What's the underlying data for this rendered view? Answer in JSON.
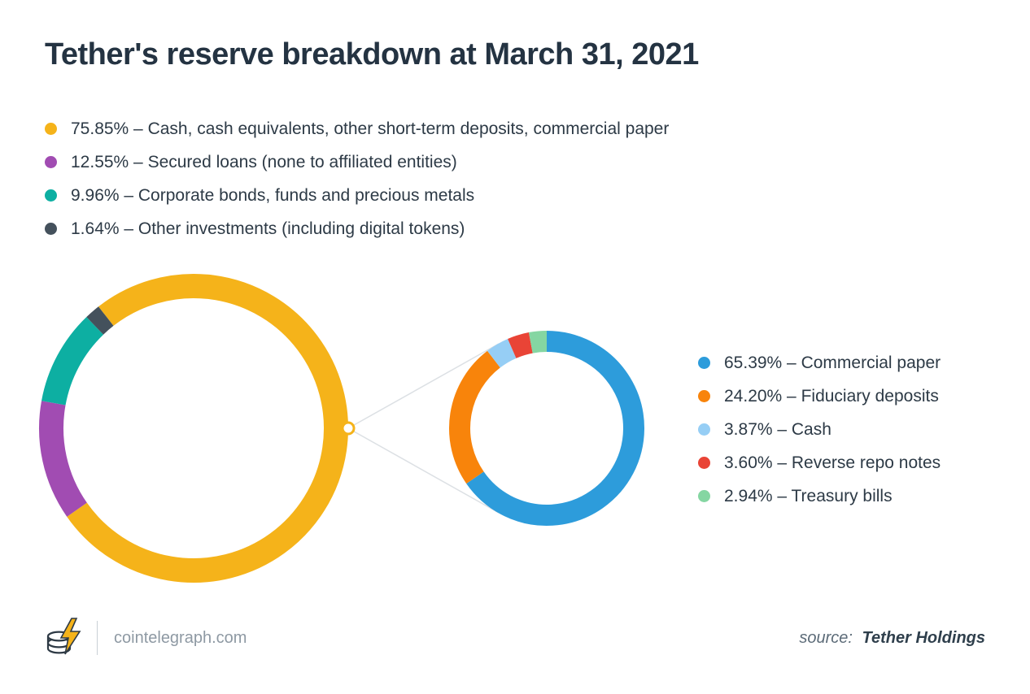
{
  "title": "Tether's reserve breakdown at March 31, 2021",
  "footer": {
    "site": "cointelegraph.com",
    "source_label": "source:",
    "source_name": "Tether Holdings"
  },
  "chart_data": [
    {
      "type": "pie",
      "variant": "donut",
      "id": "main-donut",
      "title": "Tether's reserve breakdown at March 31, 2021",
      "legend_position": "top-left",
      "start_angle_deg": -38,
      "slices": [
        {
          "label": "Cash, cash equivalents, other short-term deposits, commercial paper",
          "value": 75.85,
          "color": "#F5B31A",
          "text": "75.85% – Cash, cash equivalents, other short-term deposits, commercial paper"
        },
        {
          "label": "Secured loans (none to affiliated entities)",
          "value": 12.55,
          "color": "#A14CB2",
          "text": "12.55% – Secured loans (none to affiliated entities)"
        },
        {
          "label": "Corporate bonds, funds and precious metals",
          "value": 9.96,
          "color": "#0DAFA2",
          "text": "9.96% – Corporate bonds, funds and precious metals"
        },
        {
          "label": "Other investments (including digital tokens)",
          "value": 1.64,
          "color": "#44515C",
          "text": "1.64% – Other investments (including digital tokens)"
        }
      ]
    },
    {
      "type": "pie",
      "variant": "donut",
      "id": "detail-donut",
      "legend_position": "right",
      "start_angle_deg": 0,
      "slices": [
        {
          "label": "Commercial paper",
          "value": 65.39,
          "color": "#2D9CDB",
          "text": "65.39% – Commercial paper"
        },
        {
          "label": "Fiduciary deposits",
          "value": 24.2,
          "color": "#F8840B",
          "text": "24.20% – Fiduciary deposits"
        },
        {
          "label": "Cash",
          "value": 3.87,
          "color": "#96CEF5",
          "text": "3.87% – Cash"
        },
        {
          "label": "Reverse repo notes",
          "value": 3.6,
          "color": "#E94436",
          "text": "3.60% – Reverse repo notes"
        },
        {
          "label": "Treasury bills",
          "value": 2.94,
          "color": "#85D6A2",
          "text": "2.94% – Treasury bills"
        }
      ]
    }
  ]
}
